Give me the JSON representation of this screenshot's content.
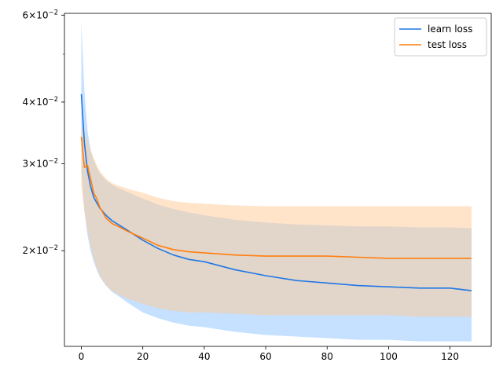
{
  "chart_data": {
    "type": "line",
    "yscale": "log",
    "xlim": [
      -5.5,
      133.4
    ],
    "ylim": [
      0.0128,
      0.0605
    ],
    "xticks": [
      0,
      20,
      40,
      60,
      80,
      100,
      120
    ],
    "xtick_labels": [
      "0",
      "20",
      "40",
      "60",
      "80",
      "100",
      "120"
    ],
    "yticks": [
      0.02,
      0.03,
      0.04,
      0.06
    ],
    "ytick_labels": [
      {
        "mant": "2",
        "exp": "−2"
      },
      {
        "mant": "3",
        "exp": "−2"
      },
      {
        "mant": "4",
        "exp": "−2"
      },
      {
        "mant": "6",
        "exp": "−2"
      }
    ],
    "legend_position": "top-right",
    "series": [
      {
        "name": "learn loss",
        "color": "#1f77e6",
        "band_color": "#8cc4ff",
        "x": [
          0,
          1,
          2,
          3,
          4,
          5,
          6,
          8,
          10,
          12,
          15,
          20,
          25,
          30,
          35,
          40,
          50,
          60,
          70,
          80,
          90,
          100,
          110,
          120,
          127
        ],
        "y": [
          0.0415,
          0.033,
          0.029,
          0.027,
          0.0257,
          0.025,
          0.0244,
          0.0236,
          0.023,
          0.0226,
          0.022,
          0.021,
          0.0202,
          0.0196,
          0.0192,
          0.019,
          0.0183,
          0.0178,
          0.0174,
          0.0172,
          0.017,
          0.0169,
          0.0168,
          0.0168,
          0.0166
        ],
        "upper": [
          0.058,
          0.042,
          0.035,
          0.032,
          0.0305,
          0.0295,
          0.0287,
          0.0278,
          0.0272,
          0.0268,
          0.0263,
          0.0255,
          0.0248,
          0.0243,
          0.0239,
          0.0236,
          0.0231,
          0.0228,
          0.0226,
          0.0225,
          0.0224,
          0.0224,
          0.0223,
          0.0223,
          0.0222
        ],
        "lower": [
          0.029,
          0.024,
          0.0215,
          0.02,
          0.019,
          0.0183,
          0.0177,
          0.017,
          0.0165,
          0.0162,
          0.0157,
          0.015,
          0.0146,
          0.0143,
          0.0141,
          0.014,
          0.0137,
          0.0135,
          0.0134,
          0.0133,
          0.0132,
          0.0132,
          0.0131,
          0.0131,
          0.0131
        ]
      },
      {
        "name": "test loss",
        "color": "#ff7f0e",
        "band_color": "#ffc995",
        "x": [
          0,
          1,
          2,
          3,
          4,
          5,
          6,
          8,
          10,
          12,
          15,
          20,
          25,
          30,
          35,
          40,
          50,
          60,
          70,
          80,
          90,
          100,
          110,
          120,
          127
        ],
        "y": [
          0.034,
          0.0295,
          0.0298,
          0.028,
          0.0262,
          0.0255,
          0.0245,
          0.0233,
          0.0227,
          0.0224,
          0.0219,
          0.0212,
          0.0205,
          0.0201,
          0.0199,
          0.0198,
          0.0196,
          0.0195,
          0.0195,
          0.0195,
          0.0194,
          0.0193,
          0.0193,
          0.0193,
          0.0193
        ],
        "upper": [
          0.036,
          0.0345,
          0.0335,
          0.032,
          0.0308,
          0.0298,
          0.029,
          0.028,
          0.0274,
          0.0271,
          0.0267,
          0.0262,
          0.0256,
          0.0252,
          0.025,
          0.0249,
          0.0247,
          0.0246,
          0.0246,
          0.0246,
          0.0246,
          0.0246,
          0.0246,
          0.0246,
          0.0246
        ],
        "lower": [
          0.027,
          0.024,
          0.022,
          0.0205,
          0.0193,
          0.0185,
          0.0178,
          0.017,
          0.0166,
          0.0163,
          0.016,
          0.0156,
          0.0153,
          0.0151,
          0.015,
          0.015,
          0.0149,
          0.0148,
          0.0148,
          0.0148,
          0.0148,
          0.0148,
          0.0147,
          0.0147,
          0.0147
        ]
      }
    ]
  }
}
